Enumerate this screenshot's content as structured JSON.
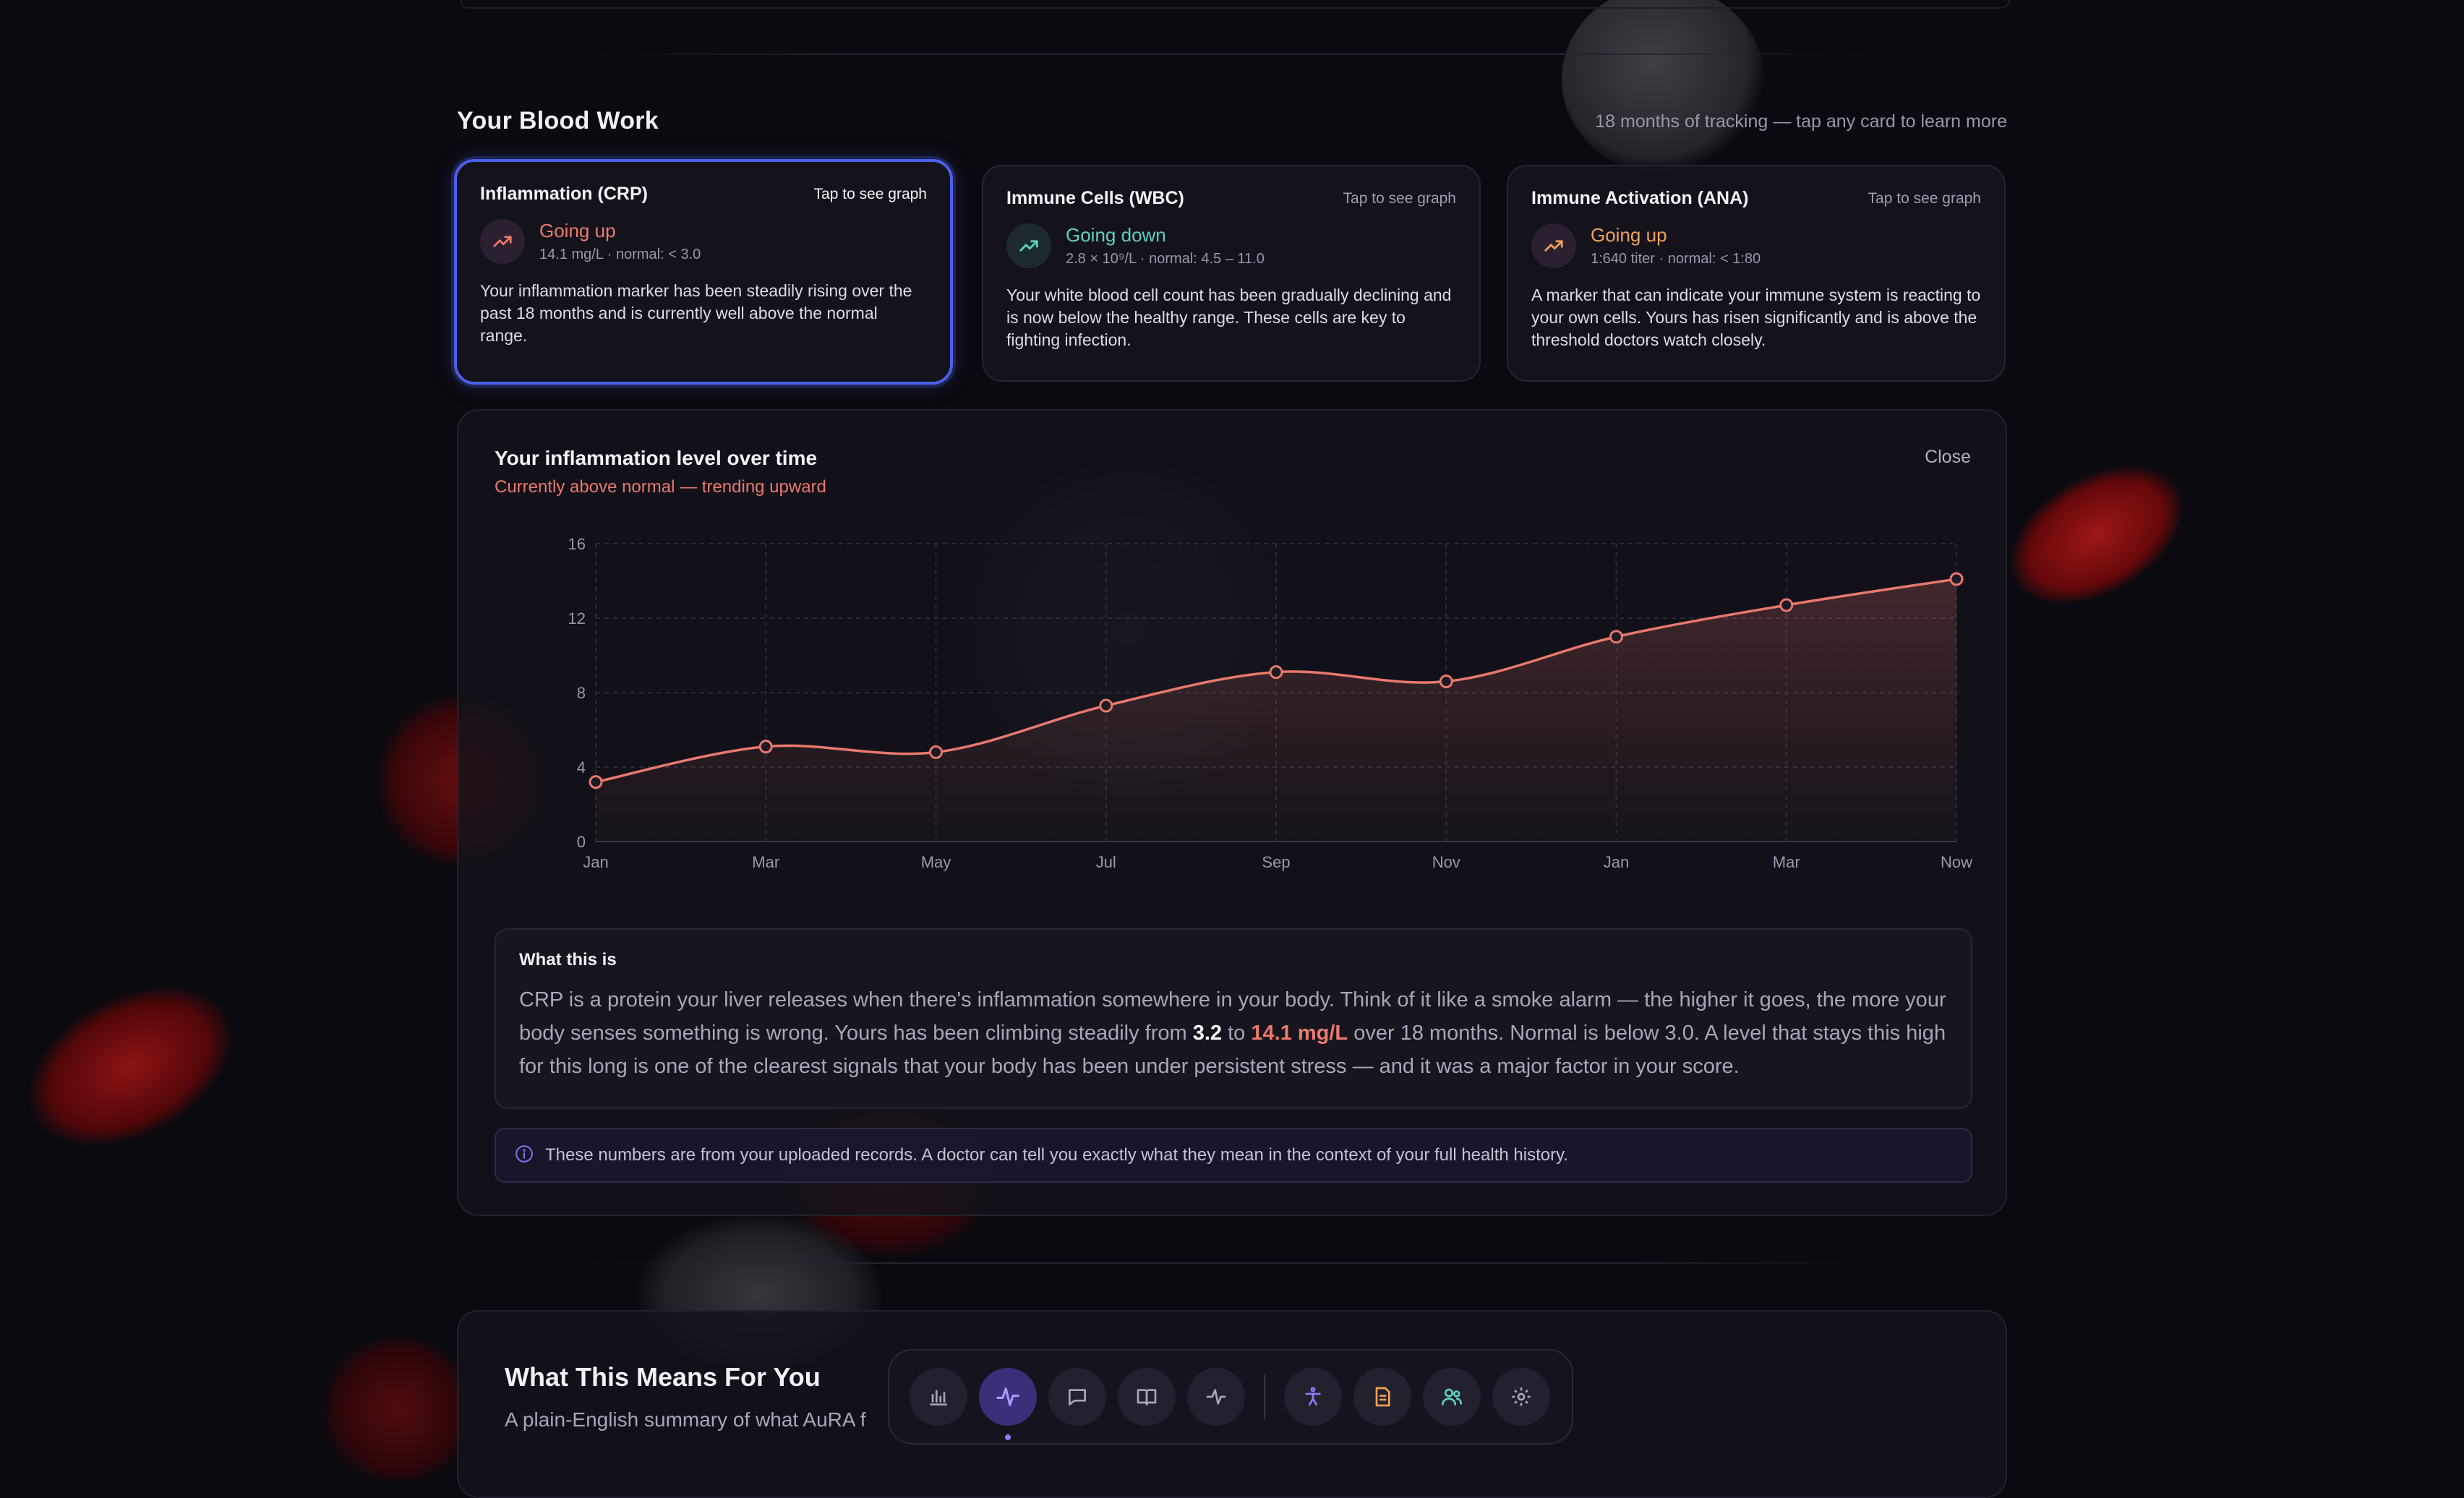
{
  "section": {
    "title": "Your Blood Work",
    "hint": "18 months of tracking — tap any card to learn more"
  },
  "cards": [
    {
      "title": "Inflammation (CRP)",
      "tap": "Tap to see graph",
      "trend": "Going up",
      "value": "14.1 mg/L",
      "normal": "normal: < 3.0",
      "description": "Your inflammation marker has been steadily rising over the past 18 months and is currently well above the normal range.",
      "icon": "trending-up-icon",
      "color": "#ec7a6e",
      "active": true
    },
    {
      "title": "Immune Cells (WBC)",
      "tap": "Tap to see graph",
      "trend": "Going down",
      "value": "2.8 × 10⁹/L",
      "normal": "normal: 4.5 – 11.0",
      "description": "Your white blood cell count has been gradually declining and is now below the healthy range. These cells are key to fighting infection.",
      "icon": "trending-down-icon",
      "color": "#5fd0c3",
      "active": false
    },
    {
      "title": "Immune Activation (ANA)",
      "tap": "Tap to see graph",
      "trend": "Going up",
      "value": "1:640 titer",
      "normal": "normal: < 1:80",
      "description": "A marker that can indicate your immune system is reacting to your own cells. Yours has risen significantly and is above the threshold doctors watch closely.",
      "icon": "trending-up-icon",
      "color": "#f2a05a",
      "active": false
    }
  ],
  "chart_panel": {
    "title": "Your inflammation level over time",
    "subtitle": "Currently above normal — trending upward",
    "close": "Close"
  },
  "chart_data": {
    "type": "area",
    "x": [
      "Jan",
      "Mar",
      "May",
      "Jul",
      "Sep",
      "Nov",
      "Jan",
      "Mar",
      "Now"
    ],
    "series": [
      {
        "values": [
          3.2,
          5.1,
          4.8,
          7.3,
          9.1,
          8.6,
          11.0,
          12.7,
          14.1
        ]
      }
    ],
    "ylim": [
      0,
      16
    ],
    "yticks": [
      0,
      4,
      8,
      12,
      16
    ],
    "grid": true,
    "line_color": "#e8786e"
  },
  "what_box": {
    "title": "What this is",
    "text_1": "CRP is a protein your liver releases when there's inflammation somewhere in your body. Think of it like a smoke alarm — the higher it goes, the more your body senses something is wrong. Yours has been climbing steadily from ",
    "bold_value": "3.2",
    "text_2": " to ",
    "highlight_value": "14.1 mg/L",
    "text_3": " over 18 months. Normal is below 3.0. A level that stays this high for this long is one of the clearest signals that your body has been under persistent stress — and it was a major factor in your score."
  },
  "note": {
    "text": "These numbers are from your uploaded records. A doctor can tell you exactly what they mean in the context of your full health history.",
    "icon": "info-icon"
  },
  "bottom_panel": {
    "title": "What This Means For You",
    "subtitle": "A plain-English summary of what AuRA f"
  },
  "dock": {
    "items": [
      {
        "name": "chart",
        "icon": "bar-chart-icon"
      },
      {
        "name": "pulse",
        "icon": "activity-icon",
        "active": true
      },
      {
        "name": "chat",
        "icon": "message-icon"
      },
      {
        "name": "learn",
        "icon": "book-icon"
      },
      {
        "name": "vitals",
        "icon": "heartbeat-icon"
      },
      {
        "name": "accessibility",
        "icon": "accessibility-icon"
      },
      {
        "name": "records",
        "icon": "document-icon"
      },
      {
        "name": "family",
        "icon": "users-icon"
      },
      {
        "name": "settings",
        "icon": "gear-icon"
      }
    ]
  }
}
